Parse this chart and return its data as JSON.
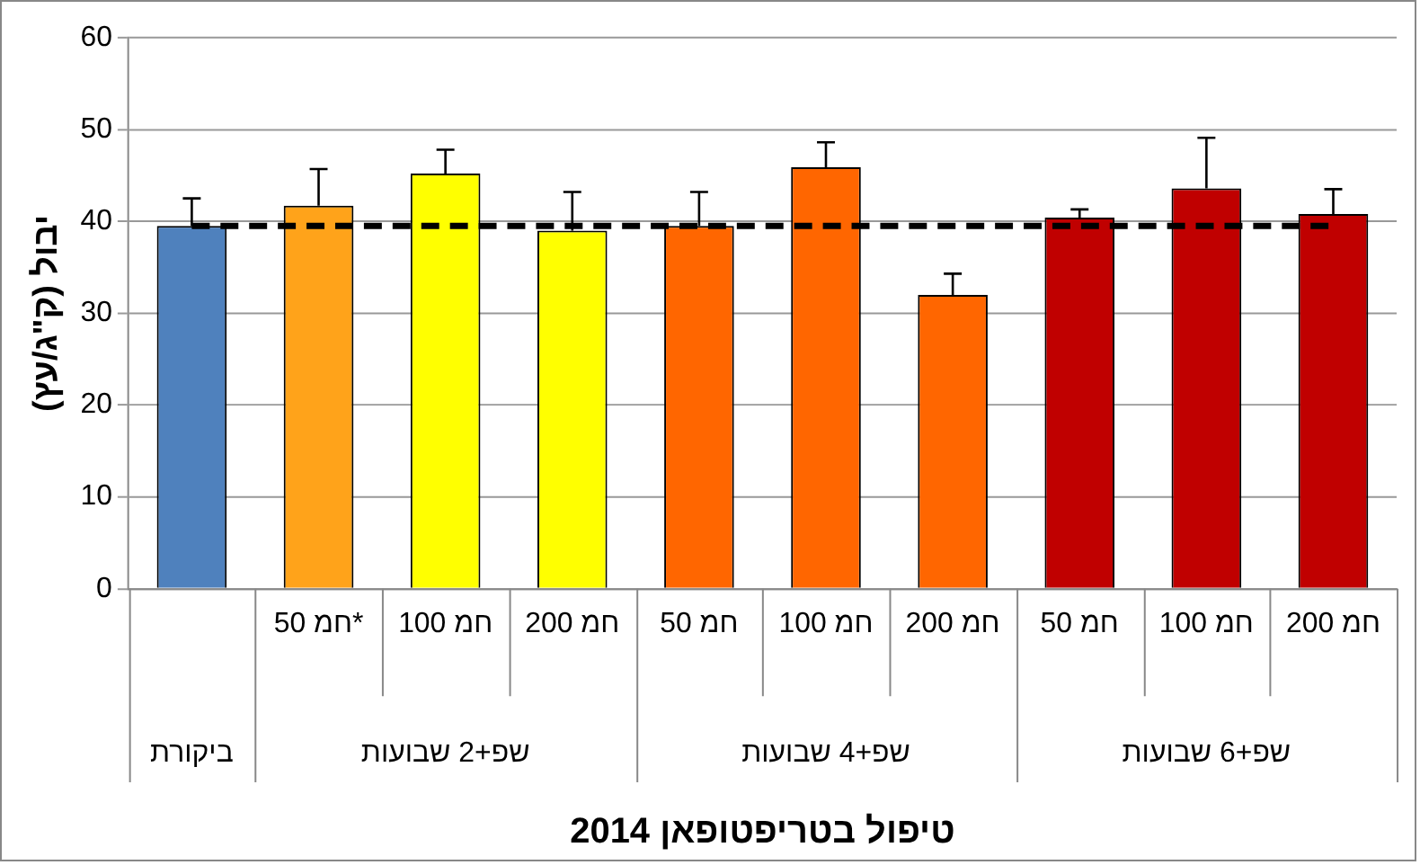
{
  "chart_data": {
    "type": "bar",
    "xlabel": "טיפול בטריפטופאן 2014",
    "ylabel": "יבול (ק\"ג/עץ)",
    "categories": [
      null,
      "50 חמ*",
      "100 חמ",
      "200 חמ",
      "50 חמ",
      "100 חמ",
      "200 חמ",
      "50 חמ",
      "100 חמ",
      "200 חמ"
    ],
    "values": [
      39.5,
      41.7,
      45.2,
      39.0,
      39.5,
      45.9,
      32.0,
      40.4,
      43.6,
      40.8
    ],
    "colors": [
      "#4f81bd",
      "#ffa31a",
      "#ffff00",
      "#ffff00",
      "#ff6600",
      "#ff6600",
      "#ff6600",
      "#c00000",
      "#c00000",
      "#c00000"
    ],
    "errors": [
      [
        39.5,
        42.5
      ],
      [
        41.7,
        45.7
      ],
      [
        45.2,
        47.8
      ],
      [
        39.0,
        43.2
      ],
      [
        39.5,
        43.2
      ],
      [
        45.9,
        48.6
      ],
      [
        32.0,
        34.3
      ],
      [
        40.4,
        41.3
      ],
      [
        43.6,
        49.1
      ],
      [
        40.8,
        43.5
      ]
    ],
    "ylim": [
      0,
      60
    ],
    "yticks": [
      0,
      10,
      20,
      30,
      40,
      50,
      60
    ],
    "grid": "y",
    "legend": false,
    "ref_lines": [
      {
        "axis": "y",
        "value": 39.5,
        "line_style": "dashed",
        "color": "#000000"
      }
    ],
    "annotations": [
      "ביקורת",
      "שפ+2 שבועות",
      "שפ+4 שבועות",
      "שפ+6 שבועות"
    ]
  }
}
